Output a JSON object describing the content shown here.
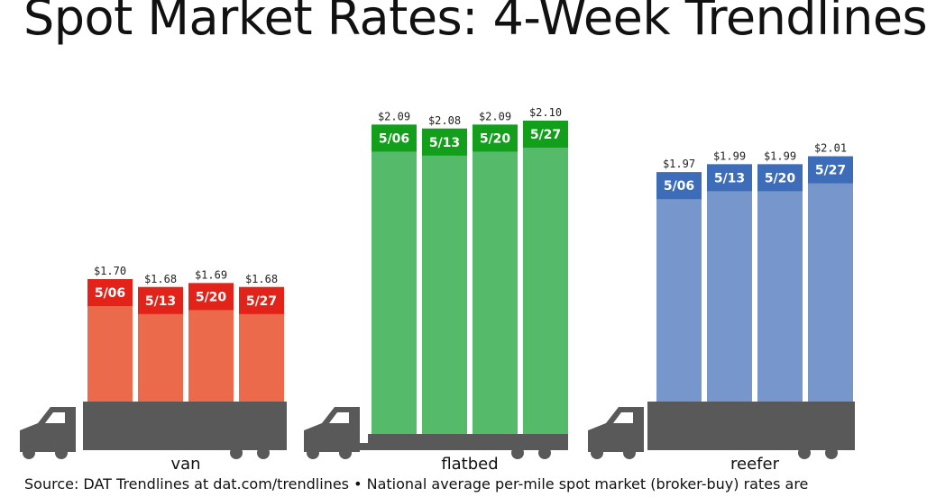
{
  "title": "Spot Market Rates: 4-Week Trendlines",
  "source_note": "Source: DAT Trendlines at dat.com/trendlines • National average per-mile spot market (broker-buy) rates are",
  "chart_data": {
    "type": "bar",
    "title": "Spot Market Rates: 4-Week Trendlines",
    "categories": [
      "5/06",
      "5/13",
      "5/20",
      "5/27"
    ],
    "groups": [
      {
        "name": "van",
        "values": [
          1.7,
          1.68,
          1.69,
          1.68
        ],
        "labels": [
          "$1.70",
          "$1.68",
          "$1.69",
          "$1.68"
        ],
        "colors": {
          "bar": "#EC6A4C",
          "cap": "#E2231A"
        }
      },
      {
        "name": "flatbed",
        "values": [
          2.09,
          2.08,
          2.09,
          2.1
        ],
        "labels": [
          "$2.09",
          "$2.08",
          "$2.09",
          "$2.10"
        ],
        "colors": {
          "bar": "#55BA6A",
          "cap": "#139F1B"
        }
      },
      {
        "name": "reefer",
        "values": [
          1.97,
          1.99,
          1.99,
          2.01
        ],
        "labels": [
          "$1.97",
          "$1.99",
          "$1.99",
          "$2.01"
        ],
        "colors": {
          "bar": "#7797CC",
          "cap": "#3D6DB9"
        }
      }
    ],
    "truck_color": "#595959",
    "grid": false,
    "legend": "none"
  }
}
